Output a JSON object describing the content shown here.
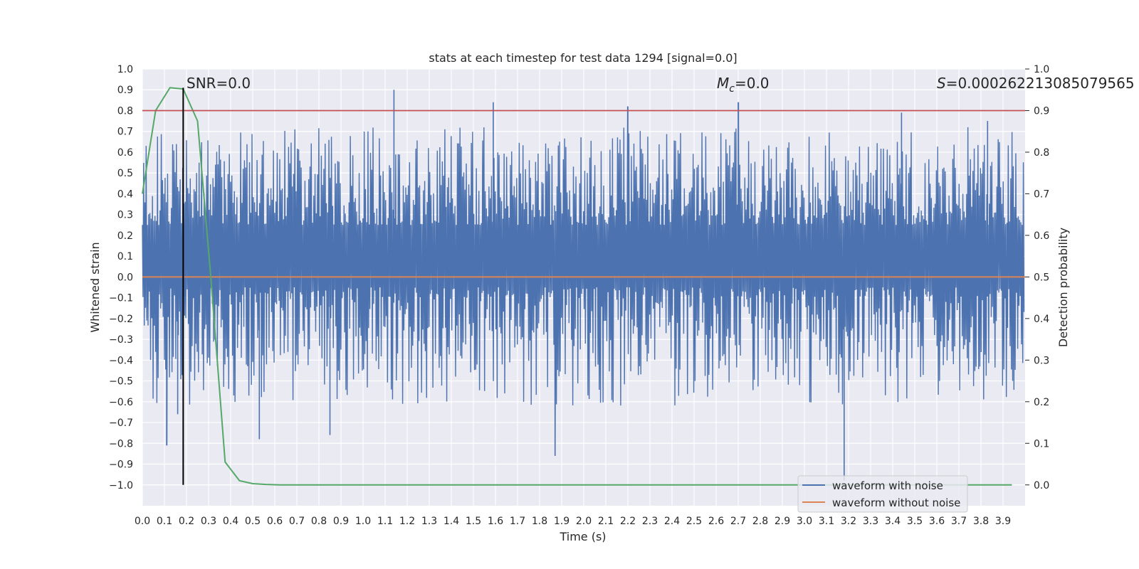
{
  "chart_data": {
    "type": "line",
    "title": "stats at each timestep for test data 1294 [signal=0.0]",
    "xlabel": "Time (s)",
    "ylabel": "Whitened strain",
    "y2label": "Detection probability",
    "xlim": [
      0.0,
      4.0
    ],
    "ylim": [
      -1.1,
      1.0
    ],
    "y2lim": [
      -0.05,
      1.0
    ],
    "xticks": [
      "0.0",
      "0.1",
      "0.2",
      "0.3",
      "0.4",
      "0.5",
      "0.6",
      "0.7",
      "0.8",
      "0.9",
      "1.0",
      "1.1",
      "1.2",
      "1.3",
      "1.4",
      "1.5",
      "1.6",
      "1.7",
      "1.8",
      "1.9",
      "2.0",
      "2.1",
      "2.2",
      "2.3",
      "2.4",
      "2.5",
      "2.6",
      "2.7",
      "2.8",
      "2.9",
      "3.0",
      "3.1",
      "3.2",
      "3.3",
      "3.4",
      "3.5",
      "3.6",
      "3.7",
      "3.8",
      "3.9"
    ],
    "yticks": [
      "1.0",
      "0.9",
      "0.8",
      "0.7",
      "0.6",
      "0.5",
      "0.4",
      "0.3",
      "0.2",
      "0.1",
      "0.0",
      "−0.1",
      "−0.2",
      "−0.3",
      "−0.4",
      "−0.5",
      "−0.6",
      "−0.7",
      "−0.8",
      "−0.9",
      "−1.0"
    ],
    "y2ticks": [
      "1.0",
      "0.9",
      "0.8",
      "0.7",
      "0.6",
      "0.5",
      "0.4",
      "0.3",
      "0.2",
      "0.1",
      "0.0"
    ],
    "annotations": {
      "snr": "SNR=0.0",
      "mc_symbol": "M",
      "mc_sub": "c",
      "mc_value": "=0.0",
      "s_symbol": "S",
      "s_value": "=0.000262213085079565"
    },
    "series": [
      {
        "name": "waveform with noise",
        "color": "#4c72b0",
        "axis": "left",
        "description": "dense noise trace sampled over 0–4 s",
        "envelope_upper_min": 0.25,
        "envelope_upper_max": 0.9,
        "envelope_lower_min": -0.95,
        "envelope_lower_max": -0.05,
        "spikes": [
          {
            "x": 0.11,
            "y": -0.81
          },
          {
            "x": 0.16,
            "y": -0.66
          },
          {
            "x": 0.53,
            "y": -0.78
          },
          {
            "x": 0.85,
            "y": -0.76
          },
          {
            "x": 1.14,
            "y": 0.9
          },
          {
            "x": 1.59,
            "y": 0.84
          },
          {
            "x": 1.87,
            "y": -0.86
          },
          {
            "x": 2.2,
            "y": 0.82
          },
          {
            "x": 2.7,
            "y": 0.84
          },
          {
            "x": 3.18,
            "y": -0.98
          },
          {
            "x": 3.44,
            "y": 0.79
          },
          {
            "x": 3.83,
            "y": 0.75
          }
        ]
      },
      {
        "name": "waveform without noise",
        "color": "#dd8452",
        "axis": "left",
        "values_constant": 0.0
      },
      {
        "name": "detection probability",
        "color": "#55a868",
        "axis": "right",
        "x": [
          0.0,
          0.06,
          0.125,
          0.185,
          0.25,
          0.31,
          0.375,
          0.44,
          0.5,
          0.56,
          0.625,
          3.94
        ],
        "y": [
          0.7,
          0.9,
          0.955,
          0.952,
          0.875,
          0.5,
          0.055,
          0.01,
          0.003,
          0.001,
          0.0,
          0.0
        ]
      }
    ],
    "threshold": {
      "axis": "right",
      "value": 0.9,
      "color": "#c44e52"
    },
    "marker_line": {
      "x": 0.185,
      "ymin": -1.0,
      "ymax": 0.91,
      "color": "#000000"
    },
    "legend": {
      "placement": "bottom-right",
      "entries": [
        {
          "label": "waveform with noise",
          "color": "#4c72b0"
        },
        {
          "label": "waveform without noise",
          "color": "#dd8452"
        }
      ]
    },
    "style": {
      "background": "#eaeaf2",
      "grid": true,
      "grid_color": "#ffffff"
    }
  }
}
